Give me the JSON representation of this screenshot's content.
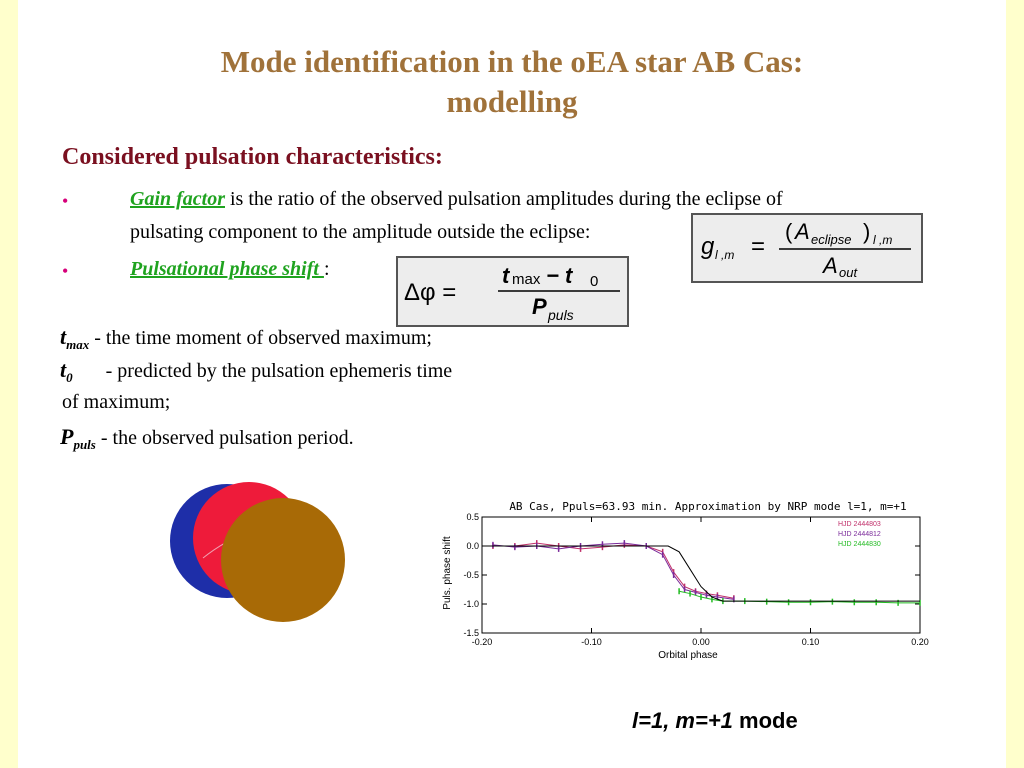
{
  "slide": {
    "title_line1": "Mode identification in the oEA star AB Cas:",
    "title_line2": "modelling",
    "heading": "Considered pulsation characteristics:",
    "bullet_symbol": "•",
    "gain": {
      "term": "Gain factor",
      "text1": " is the ratio of the observed  pulsation amplitudes during the eclipse of",
      "text2": "pulsating component to the amplitude outside the eclipse:"
    },
    "phase": {
      "term": "Pulsational phase shift ",
      "colon": ":"
    },
    "definitions": [
      {
        "symbol": "t",
        "sub": "max",
        "text": " - the time moment of observed maximum;"
      },
      {
        "symbol": "t",
        "sub": "0",
        "text": " - predicted by the pulsation ephemeris time"
      },
      {
        "symbol": "",
        "sub": "",
        "text": " of maximum;"
      },
      {
        "symbol": "P",
        "sub": "puls",
        "text": " - the observed pulsation period."
      }
    ],
    "caption_italic": "l=1, m=+1",
    "caption_rest": " mode"
  },
  "formulas": {
    "gain_lhs_g": "g",
    "gain_lhs_sub": "l ,m",
    "gain_num_A": "A",
    "gain_num_sub": "eclipse",
    "gain_num_post": "l ,m",
    "gain_den_A": "A",
    "gain_den_sub": "out",
    "phase_lhs": "Δφ =",
    "phase_num_t1": "t",
    "phase_num_sub1": "max",
    "phase_num_minus": "− t",
    "phase_num_sub2": "0",
    "phase_den_P": "P",
    "phase_den_sub": "puls"
  },
  "colors": {
    "title": "#a0723a",
    "heading": "#7a1020",
    "bullet": "#d6007a",
    "term": "#1fa31f",
    "star_blue": "#1e2ea8",
    "star_red": "#ee1b3a",
    "star_brown": "#a86a06"
  },
  "chart_data": {
    "type": "line",
    "title": "AB Cas, Ppuls=63.93 min. Approximation by NRP mode l=1, m=+1",
    "xlabel": "Orbital phase",
    "ylabel": "Puls. phase shift",
    "xlim": [
      -0.2,
      0.2
    ],
    "ylim": [
      -1.5,
      0.5
    ],
    "x_ticks": [
      -0.2,
      -0.1,
      0.0,
      0.1,
      0.2
    ],
    "x_tick_labels": [
      "-0.20",
      "-0.10",
      "0.00",
      "0.10",
      "0.20"
    ],
    "y_ticks": [
      0.5,
      0.0,
      -0.5,
      -1.0,
      -1.5
    ],
    "y_tick_labels": [
      "0.5",
      "0.0",
      "-0.5",
      "-1.0",
      "-1.5"
    ],
    "legend_position": "top-right",
    "series": [
      {
        "name": "HJD 2444803",
        "color": "#c0306a",
        "x": [
          -0.19,
          -0.17,
          -0.15,
          -0.13,
          -0.11,
          -0.09,
          -0.07,
          -0.05,
          -0.035,
          -0.025,
          -0.015,
          -0.005,
          0.005,
          0.015,
          0.03
        ],
        "y": [
          0.0,
          0.0,
          0.05,
          0.0,
          -0.05,
          -0.02,
          0.02,
          0.0,
          -0.1,
          -0.45,
          -0.7,
          -0.78,
          -0.82,
          -0.85,
          -0.9
        ]
      },
      {
        "name": "HJD 2444812",
        "color": "#7a2a9a",
        "x": [
          -0.19,
          -0.17,
          -0.15,
          -0.13,
          -0.11,
          -0.09,
          -0.07,
          -0.05,
          -0.035,
          -0.025,
          -0.015,
          -0.005,
          0.005,
          0.015,
          0.03
        ],
        "y": [
          0.02,
          -0.02,
          0.0,
          -0.05,
          0.0,
          0.03,
          0.05,
          0.0,
          -0.15,
          -0.5,
          -0.75,
          -0.8,
          -0.85,
          -0.88,
          -0.92
        ]
      },
      {
        "name": "HJD 2444830",
        "color": "#22bb22",
        "x": [
          -0.02,
          -0.01,
          0.0,
          0.01,
          0.02,
          0.04,
          0.06,
          0.08,
          0.1,
          0.12,
          0.14,
          0.16,
          0.18,
          0.2
        ],
        "y": [
          -0.78,
          -0.82,
          -0.88,
          -0.92,
          -0.95,
          -0.95,
          -0.96,
          -0.97,
          -0.97,
          -0.96,
          -0.97,
          -0.97,
          -0.98,
          -0.98
        ]
      },
      {
        "name": "",
        "color": "#000000",
        "x": [
          -0.2,
          -0.03,
          -0.02,
          -0.01,
          0.0,
          0.01,
          0.02,
          0.2
        ],
        "y": [
          0.0,
          0.0,
          -0.1,
          -0.4,
          -0.7,
          -0.88,
          -0.95,
          -0.95
        ]
      }
    ]
  }
}
